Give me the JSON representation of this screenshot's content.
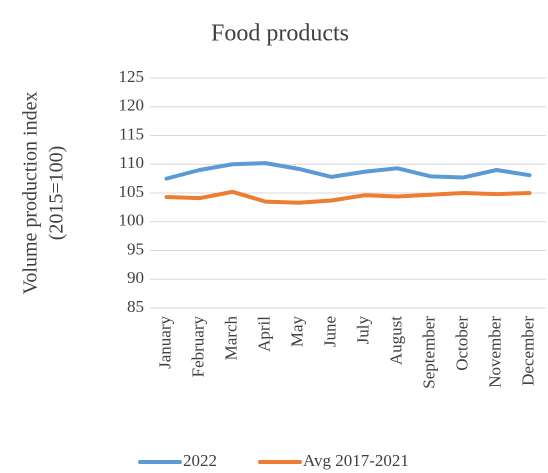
{
  "chart_data": {
    "type": "line",
    "title": "Food products",
    "y_label": [
      "Volume production index",
      "(2015=100)"
    ],
    "categories": [
      "January",
      "February",
      "March",
      "April",
      "May",
      "June",
      "July",
      "August",
      "September",
      "October",
      "November",
      "December"
    ],
    "series": [
      {
        "name": "2022",
        "color": "#5b9bd5",
        "values": [
          107.5,
          109,
          110,
          110.2,
          109.2,
          107.8,
          108.7,
          109.3,
          107.9,
          107.7,
          109,
          108.1
        ]
      },
      {
        "name": "Avg 2017-2021",
        "color": "#ed7d31",
        "values": [
          104.3,
          104.1,
          105.2,
          103.5,
          103.3,
          103.7,
          104.6,
          104.4,
          104.7,
          105,
          104.8,
          105
        ]
      }
    ],
    "ylim": [
      85,
      125
    ],
    "yticks": [
      85,
      90,
      95,
      100,
      105,
      110,
      115,
      120,
      125
    ],
    "grid": true,
    "legend": "bottom"
  }
}
